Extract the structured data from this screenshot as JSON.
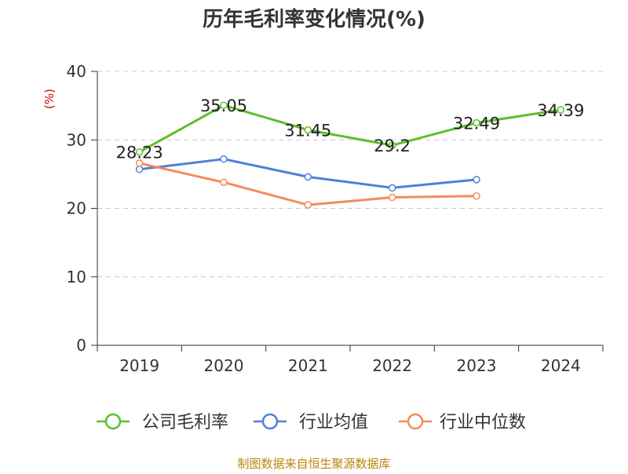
{
  "chart_data": {
    "type": "line",
    "title": "历年毛利率变化情况(%)",
    "ylabel": "(%)",
    "xlabel": "",
    "categories": [
      "2019",
      "2020",
      "2021",
      "2022",
      "2023",
      "2024"
    ],
    "ylim": [
      0,
      40
    ],
    "yticks": [
      "0",
      "10",
      "20",
      "30",
      "40"
    ],
    "grid": true,
    "legend_position": "bottom",
    "series": [
      {
        "name": "公司毛利率",
        "color": "#5cbf2a",
        "values": [
          28.23,
          35.05,
          31.45,
          29.2,
          32.49,
          34.39
        ],
        "labels": [
          "28.23",
          "35.05",
          "31.45",
          "29.2",
          "32.49",
          "34.39"
        ]
      },
      {
        "name": "行业均值",
        "color": "#4f7fd8",
        "values": [
          25.7,
          27.2,
          24.6,
          23.0,
          24.2,
          null
        ]
      },
      {
        "name": "行业中位数",
        "color": "#f48b5c",
        "values": [
          26.6,
          23.8,
          20.5,
          21.6,
          21.8,
          null
        ]
      }
    ]
  },
  "source": "制图数据来自恒生聚源数据库"
}
